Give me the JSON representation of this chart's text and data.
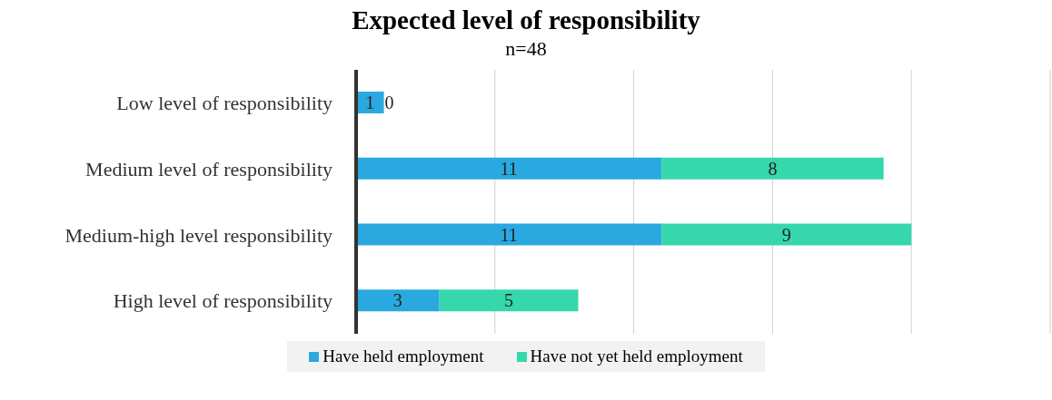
{
  "chart_data": {
    "type": "bar",
    "orientation": "horizontal",
    "stacked": true,
    "title": "Expected level of  responsibility",
    "subtitle": "n=48",
    "categories": [
      "Low level of responsibility",
      "Medium level of responsibility",
      "Medium-high level responsibility",
      "High level of responsibility"
    ],
    "series": [
      {
        "name": "Have held employment",
        "color": "#29a9df",
        "values": [
          1,
          11,
          11,
          3
        ]
      },
      {
        "name": "Have not yet held employment",
        "color": "#36d7ac",
        "values": [
          0,
          8,
          9,
          5
        ]
      }
    ],
    "xlim": [
      0,
      25
    ],
    "xticks": [
      {
        "value": 0,
        "label": null
      },
      {
        "value": 5,
        "label": null
      },
      {
        "value": 10,
        "label": null
      },
      {
        "value": 15,
        "label": null
      },
      {
        "value": 20,
        "label": null
      },
      {
        "value": 25,
        "label": null
      }
    ],
    "tick_labels": "y",
    "grid": "x",
    "data_labels": true,
    "legend": "bottom"
  }
}
